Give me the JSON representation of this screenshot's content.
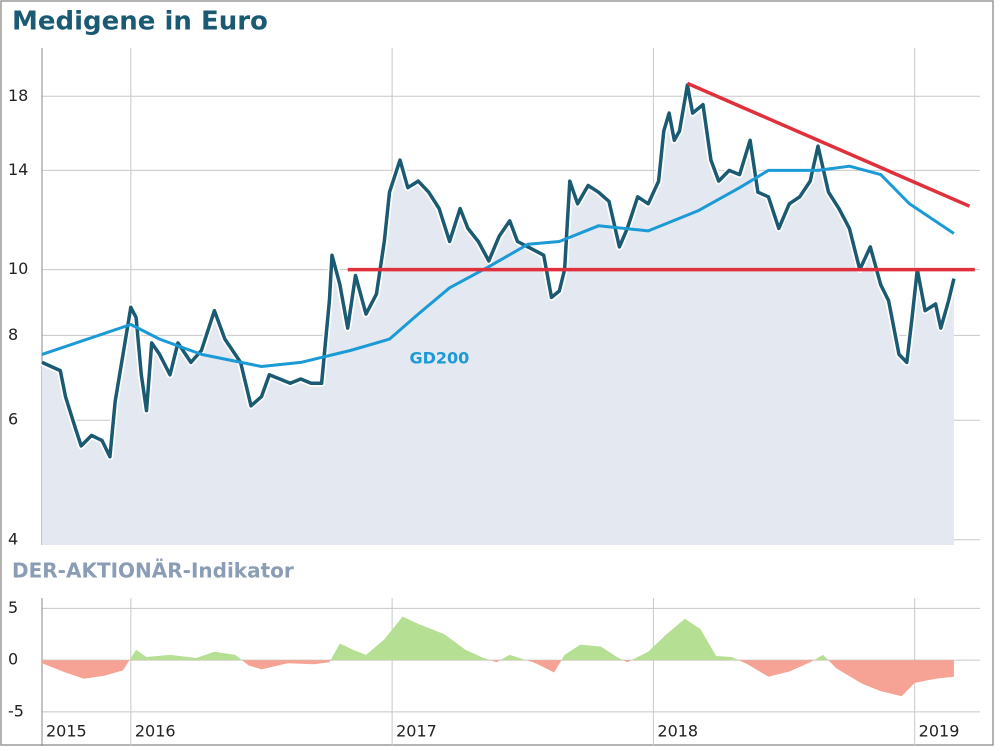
{
  "chart_data": [
    {
      "type": "line",
      "title": "Medigene in Euro",
      "log": true,
      "grid": true,
      "xlim": [
        2015.66,
        2019.25
      ],
      "xticks": [
        {
          "value": 2015.66,
          "label": "2015"
        },
        2016,
        2017,
        2018,
        2019
      ],
      "ylim": [
        3.93,
        21.2
      ],
      "yticks": [
        4,
        6,
        8,
        10,
        14,
        18
      ],
      "area_color": "#e3e8f1",
      "series": [
        {
          "color": "#1a5a73",
          "x": [
            2015.66,
            2015.73,
            2015.75,
            2015.79,
            2015.81,
            2015.85,
            2015.89,
            2015.92,
            2015.94,
            2015.97,
            2016.0,
            2016.02,
            2016.04,
            2016.06,
            2016.08,
            2016.11,
            2016.15,
            2016.18,
            2016.23,
            2016.27,
            2016.32,
            2016.36,
            2016.42,
            2016.46,
            2016.5,
            2016.53,
            2016.57,
            2016.61,
            2016.65,
            2016.69,
            2016.73,
            2016.76,
            2016.77,
            2016.8,
            2016.83,
            2016.86,
            2016.9,
            2016.94,
            2016.97,
            2016.99,
            2017.03,
            2017.06,
            2017.1,
            2017.14,
            2017.18,
            2017.22,
            2017.26,
            2017.29,
            2017.33,
            2017.37,
            2017.41,
            2017.45,
            2017.48,
            2017.52,
            2017.58,
            2017.61,
            2017.64,
            2017.66,
            2017.68,
            2017.71,
            2017.75,
            2017.79,
            2017.83,
            2017.87,
            2017.9,
            2017.94,
            2017.98,
            2018.02,
            2018.04,
            2018.06,
            2018.08,
            2018.1,
            2018.13,
            2018.15,
            2018.19,
            2018.22,
            2018.25,
            2018.29,
            2018.33,
            2018.37,
            2018.4,
            2018.44,
            2018.48,
            2018.52,
            2018.56,
            2018.6,
            2018.63,
            2018.67,
            2018.71,
            2018.75,
            2018.79,
            2018.83,
            2018.87,
            2018.9,
            2018.94,
            2018.97,
            2018.99,
            2019.01,
            2019.04,
            2019.08,
            2019.1,
            2019.13,
            2019.15
          ],
          "values": [
            7.3,
            7.1,
            6.5,
            5.8,
            5.5,
            5.7,
            5.6,
            5.3,
            6.4,
            7.5,
            8.8,
            8.5,
            7.0,
            6.2,
            7.8,
            7.5,
            7.0,
            7.8,
            7.3,
            7.6,
            8.7,
            7.9,
            7.3,
            6.3,
            6.5,
            7.0,
            6.9,
            6.8,
            6.9,
            6.8,
            6.8,
            9.0,
            10.5,
            9.5,
            8.2,
            9.8,
            8.6,
            9.2,
            11.0,
            13.0,
            14.5,
            13.2,
            13.5,
            13.0,
            12.3,
            11.0,
            12.3,
            11.5,
            11.0,
            10.3,
            11.2,
            11.8,
            11.0,
            10.8,
            10.5,
            9.1,
            9.3,
            10.0,
            13.5,
            12.5,
            13.3,
            13.0,
            12.6,
            10.8,
            11.5,
            12.8,
            12.5,
            13.5,
            16.0,
            17.0,
            15.5,
            16.0,
            18.7,
            17.0,
            17.5,
            14.5,
            13.5,
            14.0,
            13.8,
            15.5,
            13.0,
            12.8,
            11.5,
            12.5,
            12.8,
            13.5,
            15.2,
            13.0,
            12.3,
            11.5,
            10.0,
            10.8,
            9.5,
            9.0,
            7.5,
            7.3,
            8.5,
            10.0,
            8.7,
            8.9,
            8.2,
            9.0,
            9.7
          ]
        },
        {
          "name": "GD200",
          "color": "#1b9ad6",
          "x": [
            2015.66,
            2016.0,
            2016.11,
            2016.27,
            2016.5,
            2016.65,
            2016.84,
            2016.99,
            2017.1,
            2017.22,
            2017.37,
            2017.52,
            2017.64,
            2017.79,
            2017.98,
            2018.17,
            2018.33,
            2018.44,
            2018.63,
            2018.75,
            2018.87,
            2018.98,
            2019.15
          ],
          "values": [
            7.5,
            8.3,
            7.9,
            7.5,
            7.2,
            7.3,
            7.6,
            7.9,
            8.6,
            9.4,
            10.1,
            10.9,
            11.0,
            11.6,
            11.4,
            12.2,
            13.2,
            14.0,
            14.0,
            14.2,
            13.8,
            12.5,
            11.3
          ]
        }
      ],
      "lines": [
        {
          "color": "#e0303c",
          "x": [
            2016.83,
            2019.23
          ],
          "values": [
            10,
            10
          ]
        },
        {
          "color": "#e0303c",
          "x": [
            2018.13,
            2019.21
          ],
          "values": [
            18.8,
            12.4
          ]
        }
      ]
    },
    {
      "type": "area",
      "title": "DER-AKTIONÄR-Indikator",
      "ylim": [
        -8.3,
        6
      ],
      "yticks": [
        -5,
        0,
        5
      ],
      "positive_color": "#b5df92",
      "negative_color": "#f6a395",
      "x": [
        2015.66,
        2015.75,
        2015.82,
        2015.9,
        2015.97,
        2016.02,
        2016.06,
        2016.15,
        2016.25,
        2016.32,
        2016.4,
        2016.45,
        2016.5,
        2016.6,
        2016.7,
        2016.76,
        2016.8,
        2016.85,
        2016.9,
        2016.97,
        2017.04,
        2017.1,
        2017.2,
        2017.28,
        2017.35,
        2017.4,
        2017.45,
        2017.55,
        2017.62,
        2017.66,
        2017.72,
        2017.8,
        2017.86,
        2017.9,
        2017.98,
        2018.05,
        2018.12,
        2018.18,
        2018.24,
        2018.3,
        2018.36,
        2018.44,
        2018.52,
        2018.6,
        2018.65,
        2018.7,
        2018.8,
        2018.87,
        2018.95,
        2019.0,
        2019.08,
        2019.15
      ],
      "values": [
        -0.3,
        -1.2,
        -1.8,
        -1.5,
        -1.0,
        1.0,
        0.3,
        0.5,
        0.2,
        0.8,
        0.5,
        -0.5,
        -0.9,
        -0.3,
        -0.4,
        -0.2,
        1.6,
        1.0,
        0.5,
        2.0,
        4.2,
        3.5,
        2.5,
        1.0,
        0.2,
        -0.2,
        0.5,
        -0.3,
        -1.2,
        0.5,
        1.5,
        1.3,
        0.3,
        -0.2,
        0.8,
        2.5,
        4.0,
        3.0,
        0.4,
        0.3,
        -0.4,
        -1.6,
        -1.1,
        -0.2,
        0.5,
        -0.8,
        -2.3,
        -3.0,
        -3.5,
        -2.2,
        -1.8,
        -1.6
      ]
    }
  ]
}
